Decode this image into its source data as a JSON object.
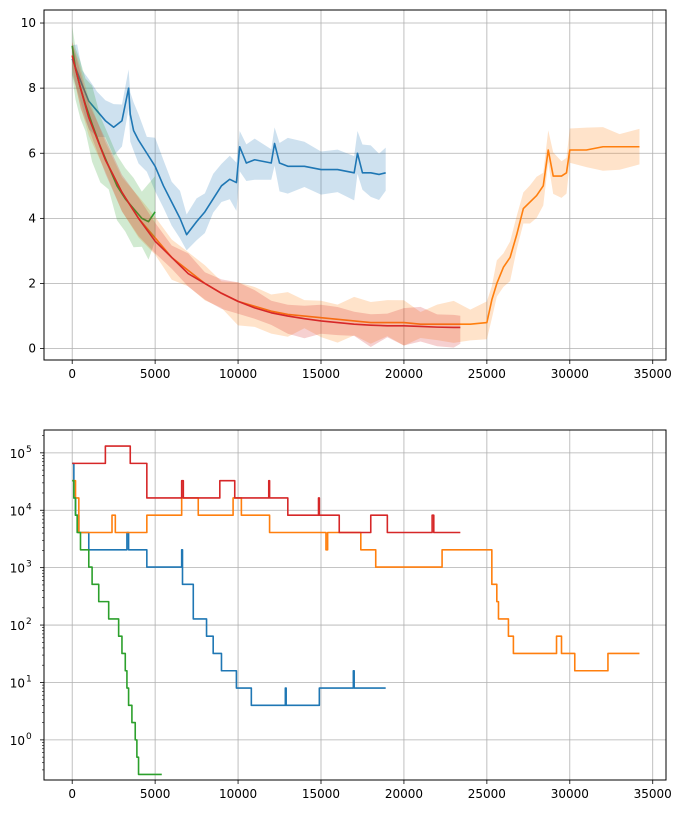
{
  "chart_data": [
    {
      "type": "line",
      "title": "",
      "xlabel": "",
      "ylabel": "",
      "xlim": [
        -1700,
        35800
      ],
      "ylim": [
        -0.35,
        10.4
      ],
      "yscale": "linear",
      "grid": true,
      "x_ticks": [
        0,
        5000,
        10000,
        15000,
        20000,
        25000,
        30000,
        35000
      ],
      "x_tick_labels": [
        "0",
        "5000",
        "10000",
        "15000",
        "20000",
        "25000",
        "30000",
        "35000"
      ],
      "y_ticks": [
        0,
        2,
        4,
        6,
        8,
        10
      ],
      "y_tick_labels": [
        "0",
        "2",
        "4",
        "6",
        "8",
        "10"
      ],
      "series": [
        {
          "color": "#1f77b4",
          "band_half_width": 0.65,
          "x": [
            0,
            300,
            600,
            1000,
            1500,
            2000,
            2500,
            3000,
            3400,
            3500,
            3700,
            4000,
            4500,
            5000,
            5500,
            6000,
            6500,
            6900,
            7500,
            8000,
            8500,
            9000,
            9500,
            9900,
            10100,
            10500,
            11000,
            12000,
            12200,
            12500,
            13000,
            14000,
            15000,
            16000,
            17000,
            17200,
            17500,
            18000,
            18500,
            18900
          ],
          "y": [
            8.9,
            8.5,
            8.1,
            7.6,
            7.3,
            7.0,
            6.8,
            7.0,
            8.0,
            7.2,
            6.7,
            6.4,
            6.0,
            5.6,
            5.0,
            4.5,
            4.0,
            3.5,
            3.9,
            4.2,
            4.6,
            5.0,
            5.2,
            5.1,
            6.2,
            5.7,
            5.8,
            5.7,
            6.3,
            5.7,
            5.6,
            5.6,
            5.5,
            5.5,
            5.4,
            6.0,
            5.4,
            5.4,
            5.35,
            5.4
          ]
        },
        {
          "color": "#ff7f0e",
          "band_half_width": 0.55,
          "x": [
            0,
            500,
            1000,
            2000,
            3000,
            4000,
            5000,
            6000,
            7000,
            8000,
            9000,
            10000,
            11000,
            12000,
            13000,
            14000,
            15000,
            16000,
            17000,
            18000,
            19000,
            20000,
            21000,
            22000,
            23000,
            24000,
            25000,
            25300,
            25600,
            26000,
            26400,
            26800,
            27200,
            27600,
            28000,
            28400,
            28700,
            29000,
            29500,
            29800,
            30000,
            31000,
            32000,
            33000,
            34200
          ],
          "y": [
            9.0,
            8.0,
            7.1,
            5.8,
            4.8,
            4.0,
            3.4,
            2.8,
            2.4,
            2.0,
            1.7,
            1.45,
            1.3,
            1.15,
            1.05,
            1.0,
            0.95,
            0.9,
            0.85,
            0.8,
            0.8,
            0.8,
            0.75,
            0.75,
            0.75,
            0.75,
            0.8,
            1.5,
            2.0,
            2.5,
            2.8,
            3.5,
            4.3,
            4.5,
            4.7,
            5.0,
            6.1,
            5.3,
            5.3,
            5.4,
            6.1,
            6.1,
            6.2,
            6.2,
            6.2
          ]
        },
        {
          "color": "#2ca02c",
          "band_half_width": 0.9,
          "x": [
            0,
            200,
            500,
            800,
            1200,
            1700,
            2200,
            2700,
            3200,
            3700,
            4200,
            4600,
            5000
          ],
          "y": [
            9.3,
            8.6,
            8.0,
            7.5,
            6.9,
            6.2,
            5.6,
            5.0,
            4.6,
            4.3,
            4.0,
            3.9,
            4.2
          ]
        },
        {
          "color": "#d62728",
          "band_half_width": 0.5,
          "x": [
            0,
            500,
            1000,
            2000,
            3000,
            4000,
            5000,
            6000,
            7000,
            8000,
            9000,
            10000,
            11000,
            12000,
            13000,
            14000,
            15000,
            16000,
            17000,
            18000,
            19000,
            20000,
            21000,
            22000,
            23000,
            23400
          ],
          "y": [
            9.0,
            8.0,
            7.1,
            5.8,
            4.8,
            4.0,
            3.3,
            2.8,
            2.3,
            2.0,
            1.7,
            1.45,
            1.25,
            1.1,
            1.0,
            0.92,
            0.85,
            0.8,
            0.75,
            0.72,
            0.7,
            0.7,
            0.68,
            0.66,
            0.65,
            0.65
          ]
        }
      ]
    },
    {
      "type": "line",
      "title": "",
      "xlabel": "",
      "ylabel": "",
      "xlim": [
        -1700,
        35800
      ],
      "ylim": [
        0.2,
        250000
      ],
      "yscale": "log",
      "grid": true,
      "x_ticks": [
        0,
        5000,
        10000,
        15000,
        20000,
        25000,
        30000,
        35000
      ],
      "x_tick_labels": [
        "0",
        "5000",
        "10000",
        "15000",
        "20000",
        "25000",
        "30000",
        "35000"
      ],
      "y_ticks": [
        1,
        10,
        100,
        1000,
        10000,
        100000
      ],
      "y_tick_labels": [
        {
          "base": "10",
          "exp": "0"
        },
        {
          "base": "10",
          "exp": "1"
        },
        {
          "base": "10",
          "exp": "2"
        },
        {
          "base": "10",
          "exp": "3"
        },
        {
          "base": "10",
          "exp": "4"
        },
        {
          "base": "10",
          "exp": "5"
        }
      ],
      "series": [
        {
          "color": "#1f77b4",
          "step": true,
          "x": [
            0,
            100,
            200,
            400,
            1000,
            3000,
            3300,
            3400,
            4500,
            6500,
            6600,
            6650,
            7300,
            8100,
            8500,
            9000,
            9900,
            10800,
            12800,
            12850,
            12900,
            14900,
            16900,
            16950,
            17000,
            18900
          ],
          "y": [
            65536,
            16384,
            8192,
            4096,
            2048,
            2048,
            4096,
            2048,
            1024,
            1024,
            2048,
            512,
            128,
            64,
            32,
            16,
            8,
            4,
            4,
            8,
            4,
            8,
            8,
            16,
            8,
            8
          ]
        },
        {
          "color": "#ff7f0e",
          "step": true,
          "x": [
            0,
            200,
            400,
            2300,
            2400,
            2600,
            4500,
            6500,
            6600,
            7600,
            9600,
            9700,
            10200,
            11800,
            11900,
            13200,
            15300,
            15400,
            17300,
            17400,
            18100,
            18300,
            20500,
            22300,
            23500,
            25300,
            25600,
            25700,
            26300,
            26600,
            26800,
            28500,
            29200,
            29500,
            30300,
            32300,
            34200
          ],
          "y": [
            32768,
            16384,
            4096,
            4096,
            8192,
            4096,
            8192,
            8192,
            16384,
            8192,
            8192,
            16384,
            8192,
            8192,
            4096,
            4096,
            2048,
            4096,
            4096,
            2048,
            2048,
            1024,
            1024,
            2048,
            2048,
            512,
            256,
            128,
            64,
            32,
            32,
            32,
            64,
            32,
            16,
            32,
            32
          ]
        },
        {
          "color": "#2ca02c",
          "step": true,
          "x": [
            0,
            100,
            200,
            300,
            500,
            1000,
            1200,
            1600,
            2200,
            2800,
            3000,
            3200,
            3300,
            3400,
            3600,
            3800,
            3900,
            4000,
            5400
          ],
          "y": [
            32768,
            16384,
            8192,
            4096,
            2048,
            1024,
            512,
            256,
            128,
            64,
            32,
            16,
            8,
            4,
            2,
            1,
            0.5,
            0.25,
            0.25
          ]
        },
        {
          "color": "#d62728",
          "step": true,
          "x": [
            0,
            2000,
            3500,
            4500,
            6500,
            6600,
            6700,
            7000,
            8900,
            9800,
            11800,
            11850,
            11900,
            13000,
            14800,
            14850,
            14900,
            16100,
            17700,
            18000,
            19000,
            21600,
            21700,
            21800,
            23400
          ],
          "y": [
            65536,
            131072,
            65536,
            16384,
            16384,
            32768,
            16384,
            16384,
            32768,
            16384,
            16384,
            32768,
            16384,
            8192,
            8192,
            16384,
            8192,
            4096,
            4096,
            8192,
            4096,
            4096,
            8192,
            4096,
            4096
          ]
        }
      ]
    }
  ]
}
